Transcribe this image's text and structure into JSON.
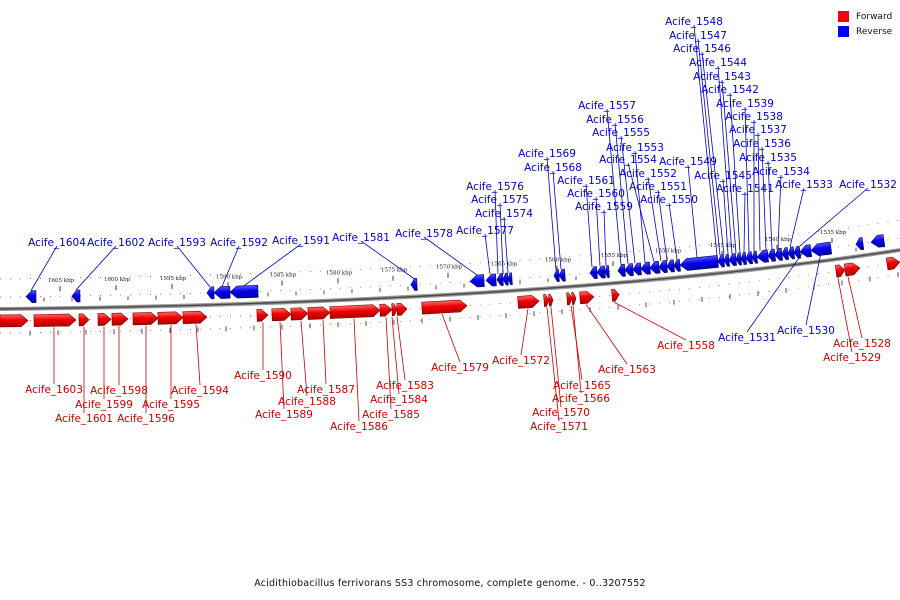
{
  "legend": {
    "forward": {
      "label": "Forward",
      "color": "#ff0000"
    },
    "reverse": {
      "label": "Reverse",
      "color": "#0000ff"
    }
  },
  "caption": "Acidithiobacillus ferrivorans SS3 chromosome, complete genome. - 0..3207552",
  "scale_labels": [
    "1605 kbp",
    "1600 kbp",
    "1595 kbp",
    "1590 kbp",
    "1585 kbp",
    "1580 kbp",
    "1575 kbp",
    "1570 kbp",
    "1565 kbp",
    "1560 kbp",
    "1555 kbp",
    "1550 kbp",
    "1545 kbp",
    "1540 kbp",
    "1535 kbp"
  ],
  "reverse_genes": [
    "Acife_1604",
    "Acife_1602",
    "Acife_1593",
    "Acife_1592",
    "Acife_1591",
    "Acife_1581",
    "Acife_1578",
    "Acife_1577",
    "Acife_1576",
    "Acife_1575",
    "Acife_1574",
    "Acife_1569",
    "Acife_1568",
    "Acife_1561",
    "Acife_1560",
    "Acife_1559",
    "Acife_1557",
    "Acife_1556",
    "Acife_1555",
    "Acife_1553",
    "Acife_1554",
    "Acife_1552",
    "Acife_1551",
    "Acife_1550",
    "Acife_1549",
    "Acife_1548",
    "Acife_1547",
    "Acife_1546",
    "Acife_1545",
    "Acife_1544",
    "Acife_1543",
    "Acife_1542",
    "Acife_1541",
    "Acife_1539",
    "Acife_1538",
    "Acife_1537",
    "Acife_1536",
    "Acife_1535",
    "Acife_1534",
    "Acife_1533",
    "Acife_1532",
    "Acife_1531",
    "Acife_1530"
  ],
  "forward_genes": [
    "Acife_1603",
    "Acife_1601",
    "Acife_1599",
    "Acife_1598",
    "Acife_1596",
    "Acife_1595",
    "Acife_1594",
    "Acife_1590",
    "Acife_1589",
    "Acife_1588",
    "Acife_1587",
    "Acife_1586",
    "Acife_1585",
    "Acife_1584",
    "Acife_1583",
    "Acife_1579",
    "Acife_1572",
    "Acife_1571",
    "Acife_1570",
    "Acife_1566",
    "Acife_1565",
    "Acife_1563",
    "Acife_1558",
    "Acife_1529",
    "Acife_1528"
  ]
}
